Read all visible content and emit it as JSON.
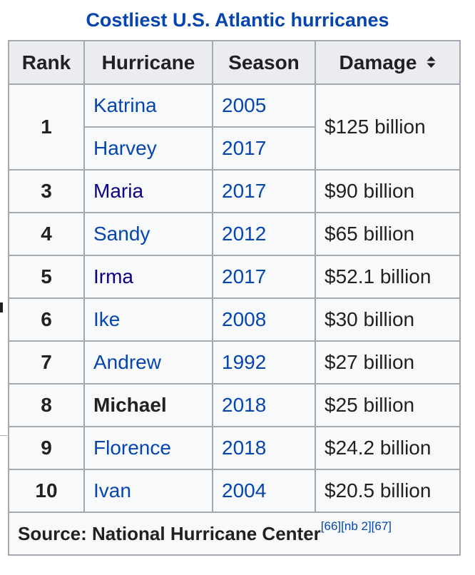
{
  "caption": "Costliest U.S. Atlantic hurricanes",
  "headers": {
    "rank": "Rank",
    "hurricane": "Hurricane",
    "season": "Season",
    "damage": "Damage"
  },
  "rows": [
    {
      "rank": "1",
      "hurricane": "Katrina",
      "season": "2005",
      "damage": "$125 billion"
    },
    {
      "hurricane": "Harvey",
      "season": "2017"
    },
    {
      "rank": "3",
      "hurricane": "Maria",
      "season": "2017",
      "damage": "$90 billion"
    },
    {
      "rank": "4",
      "hurricane": "Sandy",
      "season": "2012",
      "damage": "$65 billion"
    },
    {
      "rank": "5",
      "hurricane": "Irma",
      "season": "2017",
      "damage": "$52.1 billion"
    },
    {
      "rank": "6",
      "hurricane": "Ike",
      "season": "2008",
      "damage": "$30 billion"
    },
    {
      "rank": "7",
      "hurricane": "Andrew",
      "season": "1992",
      "damage": "$27 billion"
    },
    {
      "rank": "8",
      "hurricane": "Michael",
      "season": "2018",
      "damage": "$25 billion"
    },
    {
      "rank": "9",
      "hurricane": "Florence",
      "season": "2018",
      "damage": "$24.2 billion"
    },
    {
      "rank": "10",
      "hurricane": "Ivan",
      "season": "2004",
      "damage": "$20.5 billion"
    }
  ],
  "source": {
    "text": "Source: National Hurricane Center",
    "refs": "[66][nb 2][67]"
  },
  "icons": {
    "sort": "sort-icon"
  },
  "colors": {
    "link": "#0645ad",
    "visited_link": "#0b0080",
    "header_bg": "#eaecf0",
    "cell_bg": "#f8f9fa",
    "border": "#a2a9b1"
  }
}
